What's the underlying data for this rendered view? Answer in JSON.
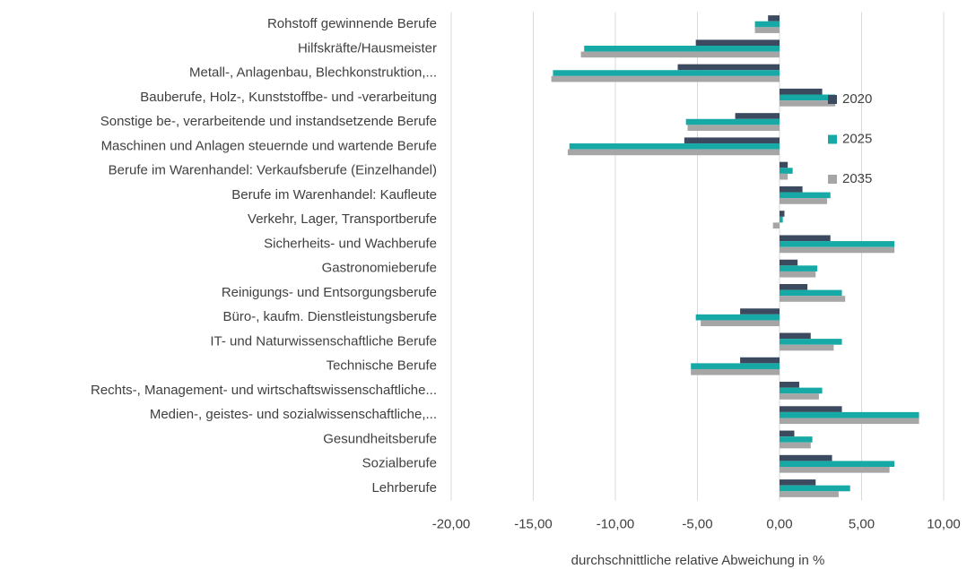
{
  "chart_data": {
    "type": "bar",
    "orientation": "horizontal",
    "x_label": "durchschnittliche relative Abweichung in %",
    "categories": [
      "Rohstoff gewinnende Berufe",
      "Hilfskräfte/Hausmeister",
      "Metall-, Anlagenbau, Blechkonstruktion,...",
      "Bauberufe, Holz-, Kunststoffbe- und -verarbeitung",
      "Sonstige be-, verarbeitende und instandsetzende Berufe",
      "Maschinen und Anlagen steuernde und wartende Berufe",
      "Berufe im Warenhandel: Verkaufsberufe (Einzelhandel)",
      "Berufe im Warenhandel: Kaufleute",
      "Verkehr, Lager, Transportberufe",
      "Sicherheits- und Wachberufe",
      "Gastronomieberufe",
      "Reinigungs- und Entsorgungsberufe",
      "Büro-, kaufm. Dienstleistungsberufe",
      "IT- und Naturwissenschaftliche Berufe",
      "Technische Berufe",
      "Rechts-, Management- und wirtschaftswissenschaftliche...",
      "Medien-, geistes- und sozialwissenschaftliche,...",
      "Gesundheitsberufe",
      "Sozialberufe",
      "Lehrberufe"
    ],
    "series": [
      {
        "name": "2020",
        "color": "#3b4a5e",
        "values": [
          -0.7,
          -5.1,
          -6.2,
          2.6,
          -2.7,
          -5.8,
          0.5,
          1.4,
          0.3,
          3.1,
          1.1,
          1.7,
          -2.4,
          1.9,
          -2.4,
          1.2,
          3.8,
          0.9,
          3.2,
          2.2
        ]
      },
      {
        "name": "2025",
        "color": "#17a9a5",
        "values": [
          -1.5,
          -11.9,
          -13.8,
          3.4,
          -5.7,
          -12.8,
          0.8,
          3.1,
          0.2,
          7.0,
          2.3,
          3.8,
          -5.1,
          3.8,
          -5.4,
          2.6,
          8.5,
          2.0,
          7.0,
          4.3
        ]
      },
      {
        "name": "2035",
        "color": "#a6a6a6",
        "values": [
          -1.5,
          -12.1,
          -13.9,
          3.4,
          -5.6,
          -12.9,
          0.5,
          2.9,
          -0.4,
          7.0,
          2.2,
          4.0,
          -4.8,
          3.3,
          -5.4,
          2.4,
          8.5,
          1.9,
          6.7,
          3.6
        ]
      }
    ],
    "xlim": [
      -20,
      10
    ],
    "xticks": [
      {
        "value": -20,
        "label": "-20,00"
      },
      {
        "value": -15,
        "label": "-15,00"
      },
      {
        "value": -10,
        "label": "-10,00"
      },
      {
        "value": -5,
        "label": "-5,00"
      },
      {
        "value": 0,
        "label": "0,00"
      },
      {
        "value": 5,
        "label": "5,00"
      },
      {
        "value": 10,
        "label": "10,00"
      }
    ],
    "grid": true,
    "legend": "right"
  }
}
